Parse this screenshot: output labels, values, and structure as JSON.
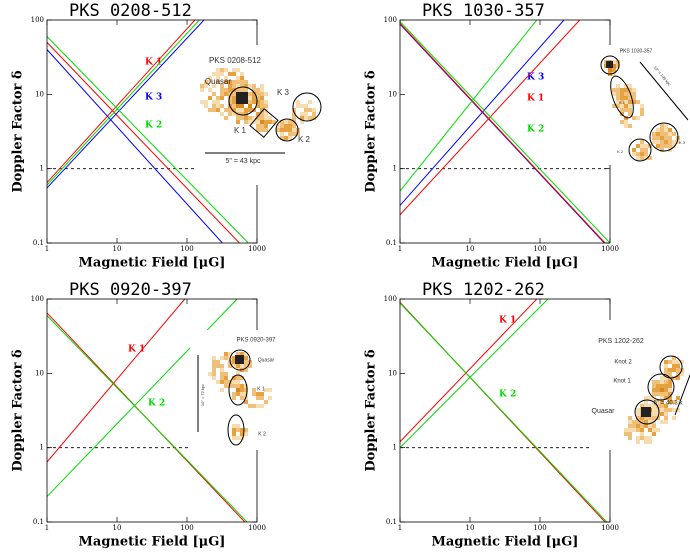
{
  "chart_data": [
    {
      "type": "line",
      "title": "PKS 0208-512",
      "xlabel": "Magnetic Field [μG]",
      "ylabel": "Doppler Factor δ",
      "log_x": true,
      "log_y": true,
      "xlim": [
        1,
        1000
      ],
      "ylim": [
        0.1,
        100
      ],
      "xticks": [
        1,
        10,
        100,
        1000
      ],
      "yticks": [
        0.1,
        1,
        10,
        100
      ],
      "reference_line": {
        "value": 1,
        "style": "dashed"
      },
      "series": [
        {
          "name": "K 1",
          "color": "#ff0000",
          "lines": [
            {
              "x": [
                1,
                130
              ],
              "values": [
                0.65,
                100
              ]
            },
            {
              "x": [
                1,
                560
              ],
              "values": [
                50,
                0.1
              ]
            }
          ]
        },
        {
          "name": "K 3",
          "color": "#0000ff",
          "lines": [
            {
              "x": [
                1,
                175
              ],
              "values": [
                0.55,
                100
              ]
            },
            {
              "x": [
                1,
                320
              ],
              "values": [
                40,
                0.1
              ]
            }
          ]
        },
        {
          "name": "K 2",
          "color": "#00dd00",
          "lines": [
            {
              "x": [
                1,
                150
              ],
              "values": [
                0.6,
                100
              ]
            },
            {
              "x": [
                1,
                750
              ],
              "values": [
                60,
                0.1
              ]
            }
          ]
        }
      ],
      "inset": {
        "labels": [
          "PKS 0208-512",
          "Quasar",
          "K 3",
          "K 1",
          "K 2",
          "5\" = 43 kpc"
        ]
      }
    },
    {
      "type": "line",
      "title": "PKS 1030-357",
      "xlabel": "Magnetic Field [μG]",
      "ylabel": "Doppler Factor δ",
      "log_x": true,
      "log_y": true,
      "xlim": [
        1,
        1000
      ],
      "ylim": [
        0.1,
        100
      ],
      "xticks": [
        1,
        10,
        100,
        1000
      ],
      "yticks": [
        0.1,
        1,
        10,
        100
      ],
      "reference_line": {
        "value": 1,
        "style": "dashed"
      },
      "series": [
        {
          "name": "K 3",
          "color": "#0000ff",
          "lines": [
            {
              "x": [
                1,
                220
              ],
              "values": [
                0.32,
                100
              ]
            },
            {
              "x": [
                1,
                830
              ],
              "values": [
                88,
                0.1
              ]
            }
          ]
        },
        {
          "name": "K 1",
          "color": "#ff0000",
          "lines": [
            {
              "x": [
                1,
                370
              ],
              "values": [
                0.24,
                100
              ]
            },
            {
              "x": [
                1,
                850
              ],
              "values": [
                90,
                0.1
              ]
            }
          ]
        },
        {
          "name": "K 2",
          "color": "#00dd00",
          "lines": [
            {
              "x": [
                1,
                90
              ],
              "values": [
                0.5,
                100
              ]
            },
            {
              "x": [
                1,
                1000
              ],
              "values": [
                95,
                0.1
              ]
            }
          ]
        }
      ],
      "inset": {
        "labels": [
          "PKS 1030-357",
          "10\" = 109 kpc",
          "K 1",
          "K 2",
          "K 3"
        ]
      }
    },
    {
      "type": "line",
      "title": "PKS 0920-397",
      "xlabel": "Magnetic Field [μG]",
      "ylabel": "Doppler Factor δ",
      "log_x": true,
      "log_y": true,
      "xlim": [
        1,
        1000
      ],
      "ylim": [
        0.1,
        100
      ],
      "xticks": [
        1,
        10,
        100,
        1000
      ],
      "yticks": [
        0.1,
        1,
        10,
        100
      ],
      "reference_line": {
        "value": 1,
        "style": "dashed"
      },
      "series": [
        {
          "name": "K 1",
          "color": "#ff0000",
          "lines": [
            {
              "x": [
                1,
                93
              ],
              "values": [
                0.64,
                100
              ]
            },
            {
              "x": [
                1,
                670
              ],
              "values": [
                65,
                0.1
              ]
            }
          ]
        },
        {
          "name": "K 2",
          "color": "#00dd00",
          "lines": [
            {
              "x": [
                1,
                520
              ],
              "values": [
                0.22,
                100
              ]
            },
            {
              "x": [
                1,
                720
              ],
              "values": [
                60,
                0.1
              ]
            }
          ]
        }
      ],
      "inset": {
        "labels": [
          "PKS 0920-397",
          "Quasar",
          "10\" = 72 kpc",
          "K 1",
          "K 2"
        ]
      }
    },
    {
      "type": "line",
      "title": "PKS 1202-262",
      "xlabel": "Magnetic Field [μG]",
      "ylabel": "Doppler Factor δ",
      "log_x": true,
      "log_y": true,
      "xlim": [
        1,
        1000
      ],
      "ylim": [
        0.1,
        100
      ],
      "xticks": [
        1,
        10,
        100,
        1000
      ],
      "yticks": [
        0.1,
        1,
        10,
        100
      ],
      "reference_line": {
        "value": 1,
        "style": "dashed"
      },
      "series": [
        {
          "name": "K 1",
          "color": "#ff0000",
          "lines": [
            {
              "x": [
                1,
                90
              ],
              "values": [
                1.2,
                100
              ]
            },
            {
              "x": [
                1,
                850
              ],
              "values": [
                90,
                0.1
              ]
            }
          ]
        },
        {
          "name": "K 2",
          "color": "#00dd00",
          "lines": [
            {
              "x": [
                1,
                130
              ],
              "values": [
                1,
                100
              ]
            },
            {
              "x": [
                1,
                900
              ],
              "values": [
                88,
                0.1
              ]
            }
          ]
        }
      ],
      "inset": {
        "labels": [
          "PKS 1202-262",
          "Knot 2",
          "Knot 1",
          "Quasar",
          "5\" = 40.3 k"
        ]
      }
    }
  ]
}
